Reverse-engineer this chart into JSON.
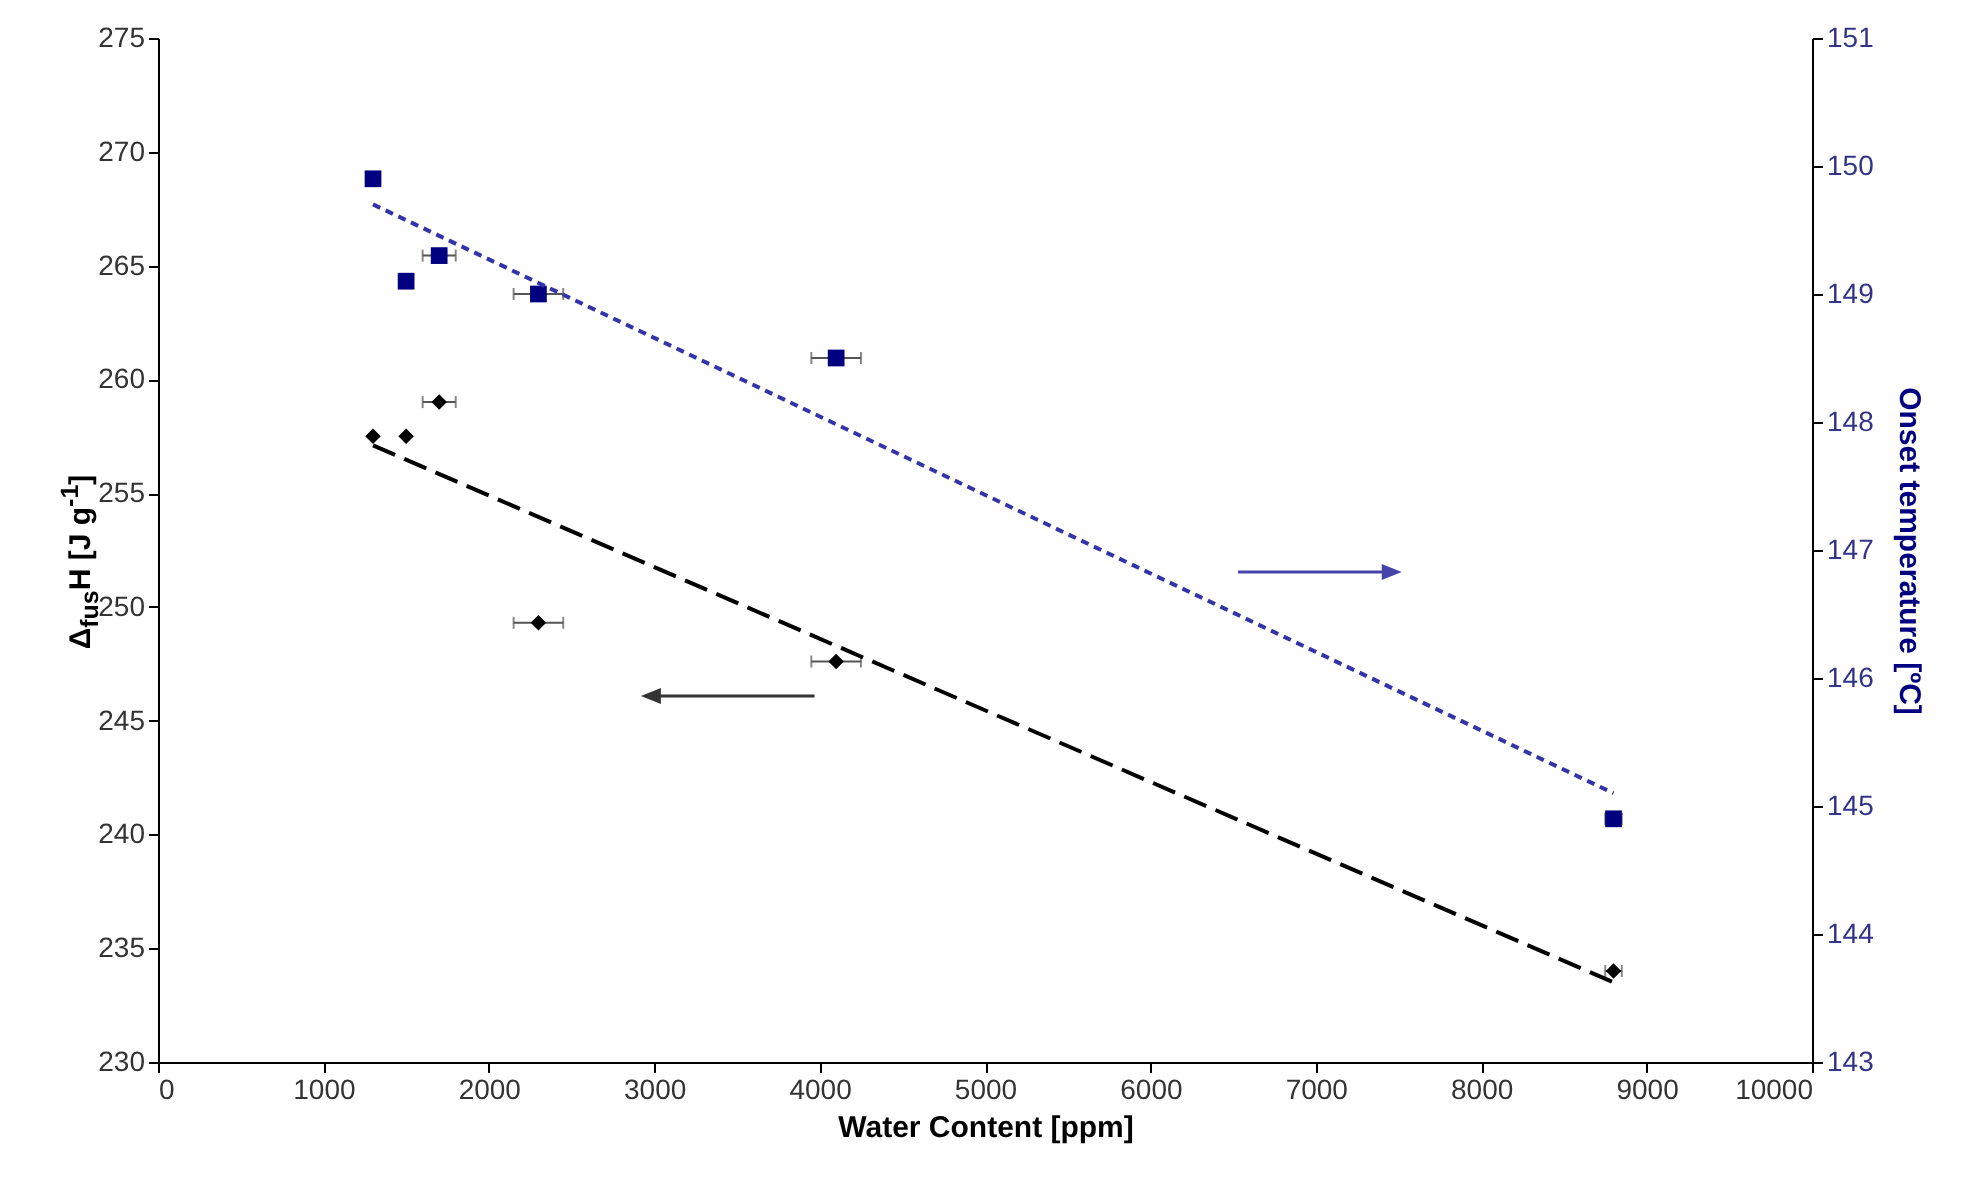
{
  "chart_data": {
    "type": "scatter",
    "xlabel": "Water Content [ppm]",
    "ylabel": "Δ$_{fus}$H [J g$^{-1}$]",
    "y2label": "Onset temperature  [ºC]",
    "xlim": [
      0,
      10000
    ],
    "xticks": [
      0,
      1000,
      2000,
      3000,
      4000,
      5000,
      6000,
      7000,
      8000,
      9000,
      10000
    ],
    "ylim": [
      230,
      275
    ],
    "yticks": [
      230,
      235,
      240,
      245,
      250,
      255,
      260,
      265,
      270,
      275
    ],
    "y2lim": [
      143,
      151
    ],
    "y2ticks": [
      143,
      144,
      145,
      146,
      147,
      148,
      149,
      150,
      151
    ],
    "grid": false,
    "series": [
      {
        "marker": "diamond",
        "color": "#000000",
        "x": [
          1300,
          1500,
          1700,
          2300,
          4100,
          8800
        ],
        "values": [
          257.5,
          257.5,
          259.0,
          249.3,
          247.6,
          234.0
        ],
        "xerrors": [
          null,
          null,
          100,
          150,
          150,
          50
        ]
      },
      {
        "marker": "square",
        "axis": "y2",
        "color": "#000080",
        "x": [
          1300,
          1500,
          1700,
          2300,
          4100,
          8800
        ],
        "values": [
          149.9,
          149.1,
          149.3,
          149.0,
          148.5,
          144.9
        ],
        "xerrors": [
          null,
          null,
          100,
          150,
          150,
          50
        ]
      },
      {
        "type": "line",
        "line_style": "dashed",
        "color": "#000000",
        "x": [
          1300,
          8800
        ],
        "values": [
          257.1,
          233.5
        ]
      },
      {
        "type": "line",
        "line_style": "dotted",
        "axis": "y2",
        "color": "#3333aa",
        "x": [
          1300,
          8800
        ],
        "values": [
          149.7,
          145.1
        ]
      }
    ]
  }
}
